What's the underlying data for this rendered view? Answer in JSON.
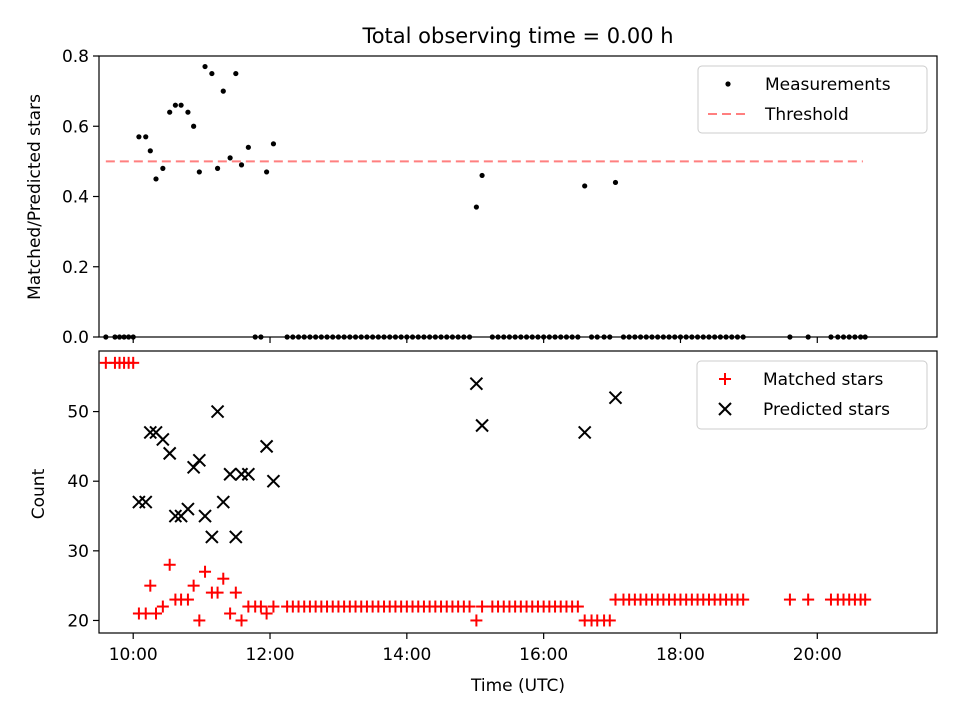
{
  "chart_data": [
    {
      "type": "scatter",
      "title": "Total observing time = 0.00 h",
      "xlabel": "",
      "ylabel": "Matched/Predicted stars",
      "xlim": [
        "09:30",
        "21:45"
      ],
      "ylim": [
        0,
        0.8
      ],
      "yticks": [
        0.0,
        0.2,
        0.4,
        0.6,
        0.8
      ],
      "ytick_labels": [
        "0.0",
        "0.2",
        "0.4",
        "0.6",
        "0.8"
      ],
      "legend_position": "top-right",
      "grid": false,
      "threshold": {
        "name": "Threshold",
        "y": 0.5,
        "x_start": "09:36",
        "x_end": "20:40",
        "color": "#ff7f7f",
        "style": "dashed"
      },
      "series": [
        {
          "name": "Measurements",
          "color": "#000000",
          "marker": "dot",
          "points": [
            [
              "09:36",
              0
            ],
            [
              "09:44",
              0
            ],
            [
              "09:48",
              0
            ],
            [
              "09:52",
              0
            ],
            [
              "09:56",
              0
            ],
            [
              "10:00",
              0
            ],
            [
              "10:05",
              0.57
            ],
            [
              "10:11",
              0.57
            ],
            [
              "10:15",
              0.53
            ],
            [
              "10:20",
              0.45
            ],
            [
              "10:26",
              0.48
            ],
            [
              "10:32",
              0.64
            ],
            [
              "10:37",
              0.66
            ],
            [
              "10:42",
              0.66
            ],
            [
              "10:48",
              0.64
            ],
            [
              "10:53",
              0.6
            ],
            [
              "10:58",
              0.47
            ],
            [
              "11:03",
              0.77
            ],
            [
              "11:09",
              0.75
            ],
            [
              "11:14",
              0.48
            ],
            [
              "11:19",
              0.7
            ],
            [
              "11:25",
              0.51
            ],
            [
              "11:30",
              0.75
            ],
            [
              "11:35",
              0.49
            ],
            [
              "11:41",
              0.54
            ],
            [
              "11:47",
              0
            ],
            [
              "11:52",
              0
            ],
            [
              "11:57",
              0.47
            ],
            [
              "12:03",
              0.55
            ],
            [
              "12:15",
              0
            ],
            [
              "12:20",
              0
            ],
            [
              "12:25",
              0
            ],
            [
              "12:30",
              0
            ],
            [
              "12:35",
              0
            ],
            [
              "12:40",
              0
            ],
            [
              "12:45",
              0
            ],
            [
              "12:50",
              0
            ],
            [
              "12:55",
              0
            ],
            [
              "13:00",
              0
            ],
            [
              "13:05",
              0
            ],
            [
              "13:10",
              0
            ],
            [
              "13:15",
              0
            ],
            [
              "13:20",
              0
            ],
            [
              "13:25",
              0
            ],
            [
              "13:30",
              0
            ],
            [
              "13:35",
              0
            ],
            [
              "13:40",
              0
            ],
            [
              "13:45",
              0
            ],
            [
              "13:50",
              0
            ],
            [
              "13:55",
              0
            ],
            [
              "14:00",
              0
            ],
            [
              "14:05",
              0
            ],
            [
              "14:10",
              0
            ],
            [
              "14:15",
              0
            ],
            [
              "14:20",
              0
            ],
            [
              "14:25",
              0
            ],
            [
              "14:30",
              0
            ],
            [
              "14:35",
              0
            ],
            [
              "14:40",
              0
            ],
            [
              "14:45",
              0
            ],
            [
              "14:50",
              0
            ],
            [
              "14:55",
              0
            ],
            [
              "15:01",
              0.37
            ],
            [
              "15:06",
              0.46
            ],
            [
              "15:15",
              0
            ],
            [
              "15:20",
              0
            ],
            [
              "15:25",
              0
            ],
            [
              "15:30",
              0
            ],
            [
              "15:35",
              0
            ],
            [
              "15:40",
              0
            ],
            [
              "15:45",
              0
            ],
            [
              "15:50",
              0
            ],
            [
              "15:55",
              0
            ],
            [
              "16:00",
              0
            ],
            [
              "16:05",
              0
            ],
            [
              "16:10",
              0
            ],
            [
              "16:15",
              0
            ],
            [
              "16:20",
              0
            ],
            [
              "16:25",
              0
            ],
            [
              "16:30",
              0
            ],
            [
              "16:36",
              0.43
            ],
            [
              "16:42",
              0
            ],
            [
              "16:47",
              0
            ],
            [
              "16:53",
              0
            ],
            [
              "16:58",
              0
            ],
            [
              "17:03",
              0.44
            ],
            [
              "17:10",
              0
            ],
            [
              "17:15",
              0
            ],
            [
              "17:20",
              0
            ],
            [
              "17:25",
              0
            ],
            [
              "17:30",
              0
            ],
            [
              "17:35",
              0
            ],
            [
              "17:40",
              0
            ],
            [
              "17:45",
              0
            ],
            [
              "17:50",
              0
            ],
            [
              "17:55",
              0
            ],
            [
              "18:00",
              0
            ],
            [
              "18:05",
              0
            ],
            [
              "18:10",
              0
            ],
            [
              "18:15",
              0
            ],
            [
              "18:20",
              0
            ],
            [
              "18:25",
              0
            ],
            [
              "18:30",
              0
            ],
            [
              "18:35",
              0
            ],
            [
              "18:40",
              0
            ],
            [
              "18:45",
              0
            ],
            [
              "18:50",
              0
            ],
            [
              "18:55",
              0
            ],
            [
              "19:36",
              0
            ],
            [
              "19:52",
              0
            ],
            [
              "20:12",
              0
            ],
            [
              "20:18",
              0
            ],
            [
              "20:23",
              0
            ],
            [
              "20:28",
              0
            ],
            [
              "20:33",
              0
            ],
            [
              "20:38",
              0
            ],
            [
              "20:42",
              0
            ]
          ]
        }
      ]
    },
    {
      "type": "scatter",
      "title": "",
      "xlabel": "Time (UTC)",
      "ylabel": "Count",
      "xlim": [
        "09:30",
        "21:45"
      ],
      "ylim": [
        18.2,
        58.7
      ],
      "xticks": [
        "10:00",
        "12:00",
        "14:00",
        "16:00",
        "18:00",
        "20:00"
      ],
      "yticks": [
        20,
        30,
        40,
        50
      ],
      "ytick_labels": [
        "20",
        "30",
        "40",
        "50"
      ],
      "legend_position": "top-right",
      "grid": false,
      "series": [
        {
          "name": "Matched stars",
          "color": "#ff0000",
          "marker": "plus",
          "points": [
            [
              "09:36",
              57
            ],
            [
              "09:44",
              57
            ],
            [
              "09:48",
              57
            ],
            [
              "09:52",
              57
            ],
            [
              "09:56",
              57
            ],
            [
              "10:00",
              57
            ],
            [
              "10:05",
              21
            ],
            [
              "10:11",
              21
            ],
            [
              "10:15",
              25
            ],
            [
              "10:20",
              21
            ],
            [
              "10:26",
              22
            ],
            [
              "10:32",
              28
            ],
            [
              "10:37",
              23
            ],
            [
              "10:42",
              23
            ],
            [
              "10:48",
              23
            ],
            [
              "10:53",
              25
            ],
            [
              "10:58",
              20
            ],
            [
              "11:03",
              27
            ],
            [
              "11:09",
              24
            ],
            [
              "11:14",
              24
            ],
            [
              "11:19",
              26
            ],
            [
              "11:25",
              21
            ],
            [
              "11:30",
              24
            ],
            [
              "11:35",
              20
            ],
            [
              "11:41",
              22
            ],
            [
              "11:47",
              22
            ],
            [
              "11:52",
              22
            ],
            [
              "11:57",
              21
            ],
            [
              "12:03",
              22
            ],
            [
              "12:15",
              22
            ],
            [
              "12:20",
              22
            ],
            [
              "12:25",
              22
            ],
            [
              "12:30",
              22
            ],
            [
              "12:35",
              22
            ],
            [
              "12:40",
              22
            ],
            [
              "12:45",
              22
            ],
            [
              "12:50",
              22
            ],
            [
              "12:55",
              22
            ],
            [
              "13:00",
              22
            ],
            [
              "13:05",
              22
            ],
            [
              "13:10",
              22
            ],
            [
              "13:15",
              22
            ],
            [
              "13:20",
              22
            ],
            [
              "13:25",
              22
            ],
            [
              "13:30",
              22
            ],
            [
              "13:35",
              22
            ],
            [
              "13:40",
              22
            ],
            [
              "13:45",
              22
            ],
            [
              "13:50",
              22
            ],
            [
              "13:55",
              22
            ],
            [
              "14:00",
              22
            ],
            [
              "14:05",
              22
            ],
            [
              "14:10",
              22
            ],
            [
              "14:15",
              22
            ],
            [
              "14:20",
              22
            ],
            [
              "14:25",
              22
            ],
            [
              "14:30",
              22
            ],
            [
              "14:35",
              22
            ],
            [
              "14:40",
              22
            ],
            [
              "14:45",
              22
            ],
            [
              "14:50",
              22
            ],
            [
              "14:55",
              22
            ],
            [
              "15:01",
              20
            ],
            [
              "15:06",
              22
            ],
            [
              "15:15",
              22
            ],
            [
              "15:20",
              22
            ],
            [
              "15:25",
              22
            ],
            [
              "15:30",
              22
            ],
            [
              "15:35",
              22
            ],
            [
              "15:40",
              22
            ],
            [
              "15:45",
              22
            ],
            [
              "15:50",
              22
            ],
            [
              "15:55",
              22
            ],
            [
              "16:00",
              22
            ],
            [
              "16:05",
              22
            ],
            [
              "16:10",
              22
            ],
            [
              "16:15",
              22
            ],
            [
              "16:20",
              22
            ],
            [
              "16:25",
              22
            ],
            [
              "16:30",
              22
            ],
            [
              "16:36",
              20
            ],
            [
              "16:42",
              20
            ],
            [
              "16:47",
              20
            ],
            [
              "16:53",
              20
            ],
            [
              "16:58",
              20
            ],
            [
              "17:03",
              23
            ],
            [
              "17:10",
              23
            ],
            [
              "17:15",
              23
            ],
            [
              "17:20",
              23
            ],
            [
              "17:25",
              23
            ],
            [
              "17:30",
              23
            ],
            [
              "17:35",
              23
            ],
            [
              "17:40",
              23
            ],
            [
              "17:45",
              23
            ],
            [
              "17:50",
              23
            ],
            [
              "17:55",
              23
            ],
            [
              "18:00",
              23
            ],
            [
              "18:05",
              23
            ],
            [
              "18:10",
              23
            ],
            [
              "18:15",
              23
            ],
            [
              "18:20",
              23
            ],
            [
              "18:25",
              23
            ],
            [
              "18:30",
              23
            ],
            [
              "18:35",
              23
            ],
            [
              "18:40",
              23
            ],
            [
              "18:45",
              23
            ],
            [
              "18:50",
              23
            ],
            [
              "18:55",
              23
            ],
            [
              "19:36",
              23
            ],
            [
              "19:52",
              23
            ],
            [
              "20:12",
              23
            ],
            [
              "20:18",
              23
            ],
            [
              "20:23",
              23
            ],
            [
              "20:28",
              23
            ],
            [
              "20:33",
              23
            ],
            [
              "20:38",
              23
            ],
            [
              "20:42",
              23
            ]
          ]
        },
        {
          "name": "Predicted stars",
          "color": "#000000",
          "marker": "x",
          "points": [
            [
              "10:05",
              37
            ],
            [
              "10:11",
              37
            ],
            [
              "10:15",
              47
            ],
            [
              "10:20",
              47
            ],
            [
              "10:26",
              46
            ],
            [
              "10:32",
              44
            ],
            [
              "10:37",
              35
            ],
            [
              "10:42",
              35
            ],
            [
              "10:48",
              36
            ],
            [
              "10:53",
              42
            ],
            [
              "10:58",
              43
            ],
            [
              "11:03",
              35
            ],
            [
              "11:09",
              32
            ],
            [
              "11:14",
              50
            ],
            [
              "11:19",
              37
            ],
            [
              "11:25",
              41
            ],
            [
              "11:30",
              32
            ],
            [
              "11:35",
              41
            ],
            [
              "11:41",
              41
            ],
            [
              "11:57",
              45
            ],
            [
              "12:03",
              40
            ],
            [
              "15:01",
              54
            ],
            [
              "15:06",
              48
            ],
            [
              "16:36",
              47
            ],
            [
              "17:03",
              52
            ]
          ]
        }
      ]
    }
  ]
}
